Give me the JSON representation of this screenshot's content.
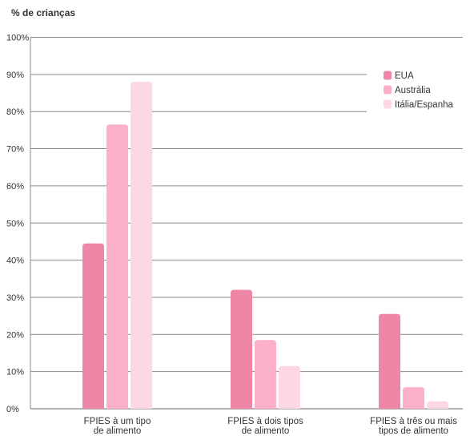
{
  "chart_data": {
    "type": "bar",
    "ylabel": "% de crianças",
    "xlabel": "",
    "ylim": [
      0,
      100
    ],
    "yticks": [
      "0%",
      "10%",
      "20%",
      "30%",
      "40%",
      "50%",
      "60%",
      "70%",
      "80%",
      "90%",
      "100%"
    ],
    "categories": [
      [
        "FPIES à um tipo",
        "de alimento"
      ],
      [
        "FPIES à dois tipos",
        "de alimento"
      ],
      [
        "FPIES à três ou mais",
        "tipos de alimento"
      ]
    ],
    "series": [
      {
        "name": "EUA",
        "color": "#ed87a5",
        "values": [
          44.5,
          32,
          25.5
        ]
      },
      {
        "name": "Austrália",
        "color": "#fcb0c8",
        "values": [
          76.5,
          18.5,
          5.8
        ]
      },
      {
        "name": "Itália/Espanha",
        "color": "#fdd8e3",
        "values": [
          88,
          11.5,
          2
        ]
      }
    ],
    "grid": true,
    "legend_position": "top-right"
  }
}
